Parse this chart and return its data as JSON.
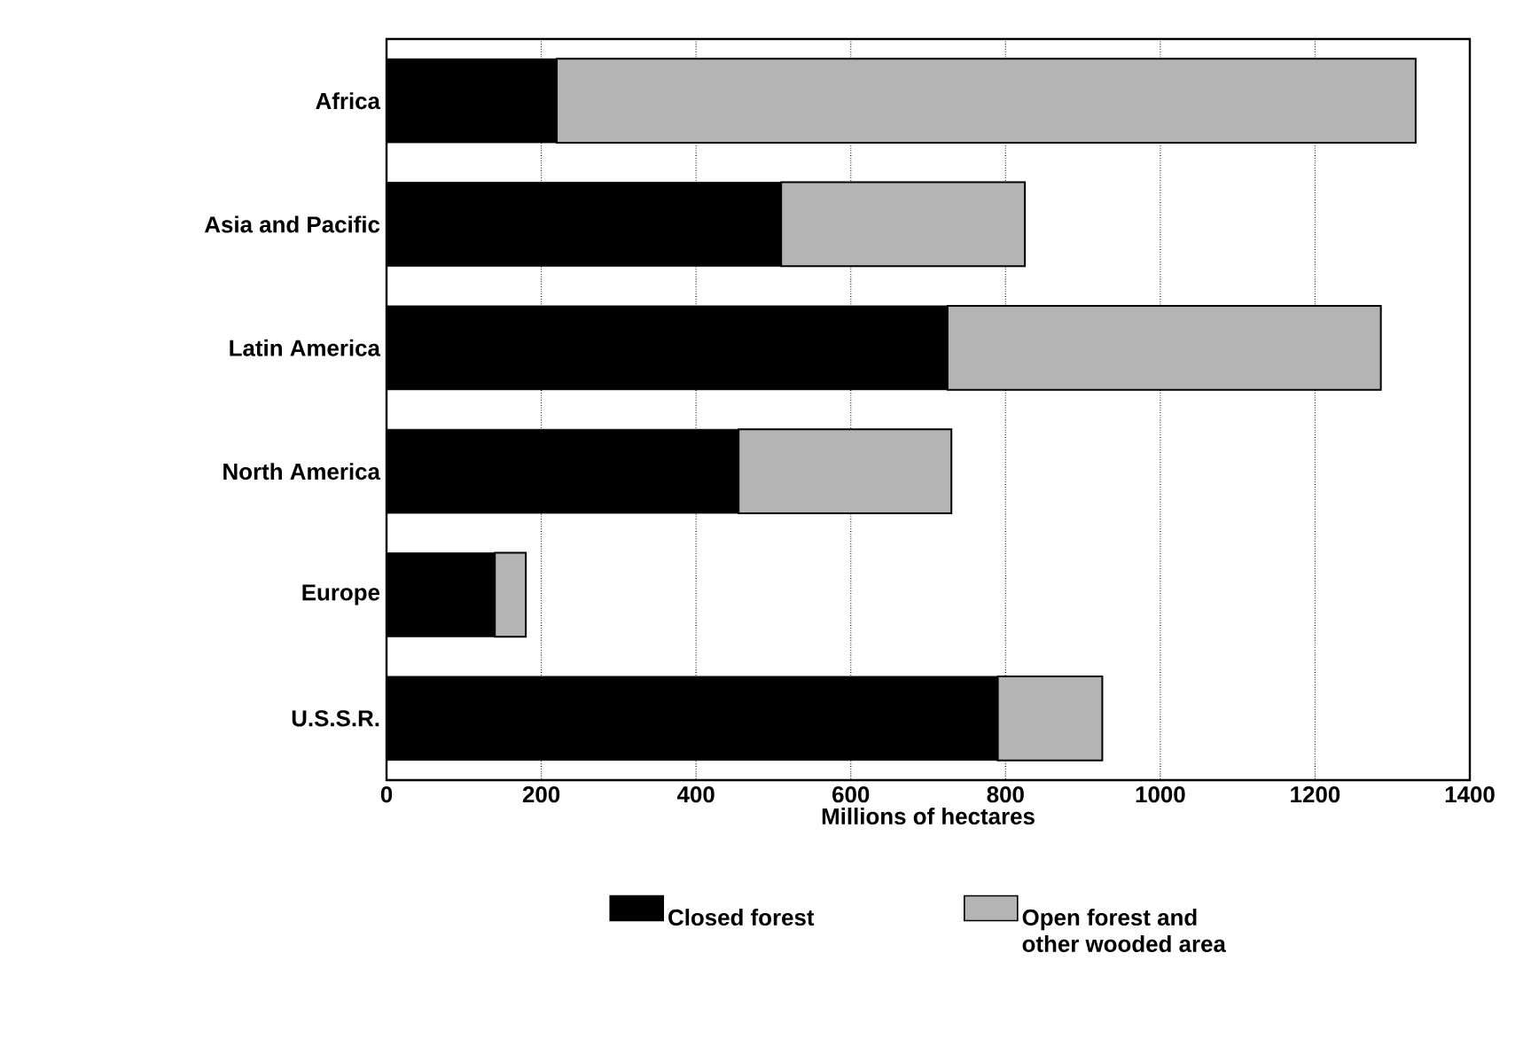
{
  "chart_data": {
    "type": "bar",
    "orientation": "horizontal",
    "stacked": true,
    "xlabel": "Millions of hectares",
    "categories": [
      "Africa",
      "Asia and Pacific",
      "Latin America",
      "North America",
      "Europe",
      "U.S.S.R."
    ],
    "series": [
      {
        "name": "Closed forest",
        "color": "#000000",
        "values": [
          220,
          510,
          725,
          455,
          140,
          790
        ]
      },
      {
        "name": "Open forest and other wooded area",
        "color": "#b4b4b4",
        "values": [
          1110,
          315,
          560,
          275,
          40,
          135
        ]
      }
    ],
    "xlim": [
      0,
      1400
    ],
    "xticks": [
      0,
      200,
      400,
      600,
      800,
      1000,
      1200,
      1400
    ],
    "grid": "x",
    "legend": "bottom"
  }
}
